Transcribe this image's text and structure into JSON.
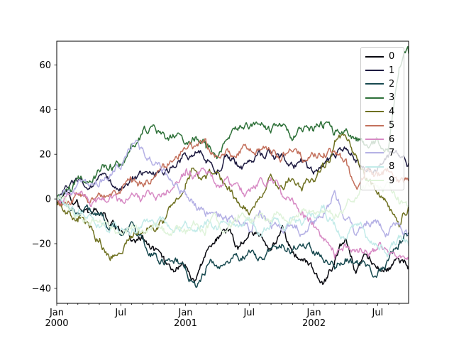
{
  "figure": {
    "background_color": "#ffffff",
    "title": ""
  },
  "chart_data": {
    "type": "line",
    "title": "",
    "xlabel": "",
    "ylabel": "",
    "grid": false,
    "x_axis": {
      "unit": "date",
      "range_days": [
        0,
        1000
      ],
      "start_label": "Jan 2000",
      "major_ticks": [
        {
          "day": 0,
          "label": "Jan",
          "sublabel": "2000"
        },
        {
          "day": 182,
          "label": "Jul",
          "sublabel": ""
        },
        {
          "day": 366,
          "label": "Jan",
          "sublabel": "2001"
        },
        {
          "day": 547,
          "label": "Jul",
          "sublabel": ""
        },
        {
          "day": 731,
          "label": "Jan",
          "sublabel": "2002"
        },
        {
          "day": 912,
          "label": "Jul",
          "sublabel": ""
        }
      ],
      "minor_tick_days": [
        31,
        60,
        91,
        121,
        152,
        213,
        244,
        274,
        305,
        335,
        397,
        425,
        456,
        486,
        517,
        578,
        609,
        639,
        670,
        700,
        762,
        790,
        821,
        851,
        882,
        943,
        973
      ]
    },
    "y_axis": {
      "range": [
        -46.7,
        70.6
      ],
      "ticks": [
        {
          "value": 60,
          "label": "60"
        },
        {
          "value": 40,
          "label": "40"
        },
        {
          "value": 20,
          "label": "20"
        },
        {
          "value": 0,
          "label": "0"
        },
        {
          "value": -20,
          "label": "−20"
        },
        {
          "value": -40,
          "label": "−40"
        }
      ]
    },
    "legend": {
      "position": "upper right",
      "border_color": "#cccccc",
      "background": "rgba(255,255,255,0.8)",
      "labels": [
        "0",
        "1",
        "2",
        "3",
        "4",
        "5",
        "6",
        "7",
        "8",
        "9"
      ]
    },
    "line_width": 1.5,
    "x_days": [
      0,
      30,
      61,
      91,
      122,
      152,
      182,
      213,
      244,
      274,
      305,
      335,
      366,
      396,
      424,
      455,
      485,
      516,
      547,
      577,
      608,
      639,
      669,
      700,
      731,
      759,
      790,
      820,
      851,
      881,
      912,
      942,
      973,
      1000
    ],
    "series": [
      {
        "name": "0",
        "color": "#08080f",
        "values": [
          0,
          2,
          -3,
          -6,
          -4,
          -10,
          -15,
          -20,
          -17,
          -22,
          -28,
          -30,
          -31,
          -37,
          -25,
          -17,
          -14,
          -22,
          -13,
          -18,
          -20,
          -14,
          -22,
          -26,
          -32,
          -39,
          -30,
          -18,
          -32,
          -24,
          -28,
          -31,
          -27,
          -30
        ]
      },
      {
        "name": "1",
        "color": "#1d1a40",
        "values": [
          0,
          6,
          9,
          5,
          8,
          7,
          6,
          10,
          12,
          14,
          12,
          16,
          19,
          22,
          18,
          15,
          20,
          16,
          14,
          18,
          21,
          17,
          14,
          16,
          12,
          15,
          19,
          21,
          17,
          14,
          13,
          18,
          21,
          16
        ]
      },
      {
        "name": "2",
        "color": "#17494f",
        "values": [
          0,
          -2,
          -6,
          -4,
          -8,
          -12,
          -16,
          -14,
          -20,
          -24,
          -28,
          -26,
          -31,
          -40,
          -32,
          -27,
          -30,
          -26,
          -24,
          -28,
          -23,
          -20,
          -22,
          -20,
          -23,
          -26,
          -30,
          -25,
          -30,
          -33,
          -36,
          -28,
          -20,
          -15
        ]
      },
      {
        "name": "3",
        "color": "#2d7038",
        "values": [
          0,
          4,
          8,
          6,
          12,
          15,
          14,
          22,
          30,
          33,
          26,
          28,
          25,
          27,
          24,
          21,
          26,
          30,
          33,
          36,
          30,
          34,
          28,
          32,
          30,
          33,
          28,
          31,
          27,
          24,
          26,
          24,
          60,
          65
        ]
      },
      {
        "name": "4",
        "color": "#6f7121",
        "values": [
          0,
          -5,
          -8,
          -13,
          -18,
          -25,
          -24,
          -16,
          -12,
          -13,
          -9,
          -2,
          10,
          14,
          8,
          12,
          5,
          -2,
          -5,
          2,
          8,
          4,
          10,
          6,
          6,
          14,
          24,
          26,
          20,
          10,
          2,
          -4,
          -9,
          -3
        ]
      },
      {
        "name": "5",
        "color": "#c3705c",
        "values": [
          0,
          -3,
          2,
          0,
          4,
          2,
          5,
          8,
          6,
          10,
          13,
          18,
          24,
          22,
          25,
          19,
          22,
          20,
          24,
          21,
          23,
          19,
          22,
          18,
          20,
          23,
          20,
          16,
          4,
          13,
          10,
          13,
          6,
          8
        ]
      },
      {
        "name": "6",
        "color": "#d78ac4",
        "values": [
          0,
          3,
          -2,
          2,
          -3,
          0,
          -2,
          2,
          0,
          3,
          1,
          7,
          13,
          10,
          12,
          8,
          10,
          4,
          2,
          7,
          9,
          3,
          -2,
          -6,
          -12,
          -18,
          -24,
          -20,
          -24,
          -21,
          -24,
          -22,
          -28,
          -27
        ]
      },
      {
        "name": "7",
        "color": "#b5b1e5",
        "values": [
          0,
          2,
          5,
          3,
          8,
          12,
          16,
          24,
          21,
          18,
          12,
          8,
          2,
          -4,
          -8,
          -5,
          -10,
          -7,
          -12,
          -6,
          -10,
          -14,
          -10,
          -14,
          -10,
          -6,
          2,
          -8,
          -14,
          -10,
          -11,
          -15,
          -13,
          -16
        ]
      },
      {
        "name": "8",
        "color": "#c3ebe9",
        "values": [
          0,
          -4,
          -8,
          -6,
          -10,
          -13,
          -12,
          -15,
          -12,
          -14,
          -11,
          -13,
          -12,
          -14,
          -10,
          -12,
          -9,
          -12,
          -10,
          -13,
          -9,
          -12,
          -8,
          -11,
          -8,
          -5,
          -12,
          -16,
          -10,
          -16,
          -20,
          -23,
          -19,
          -21
        ]
      },
      {
        "name": "9",
        "color": "#dff3da",
        "values": [
          0,
          -3,
          -7,
          -10,
          -8,
          -13,
          -16,
          -13,
          -16,
          -12,
          -15,
          -12,
          -14,
          -10,
          -13,
          -9,
          -12,
          -8,
          -11,
          -7,
          -10,
          -6,
          -9,
          -5,
          -8,
          -4,
          -7,
          -2,
          2,
          5,
          3,
          5,
          0,
          -3
        ]
      }
    ]
  }
}
